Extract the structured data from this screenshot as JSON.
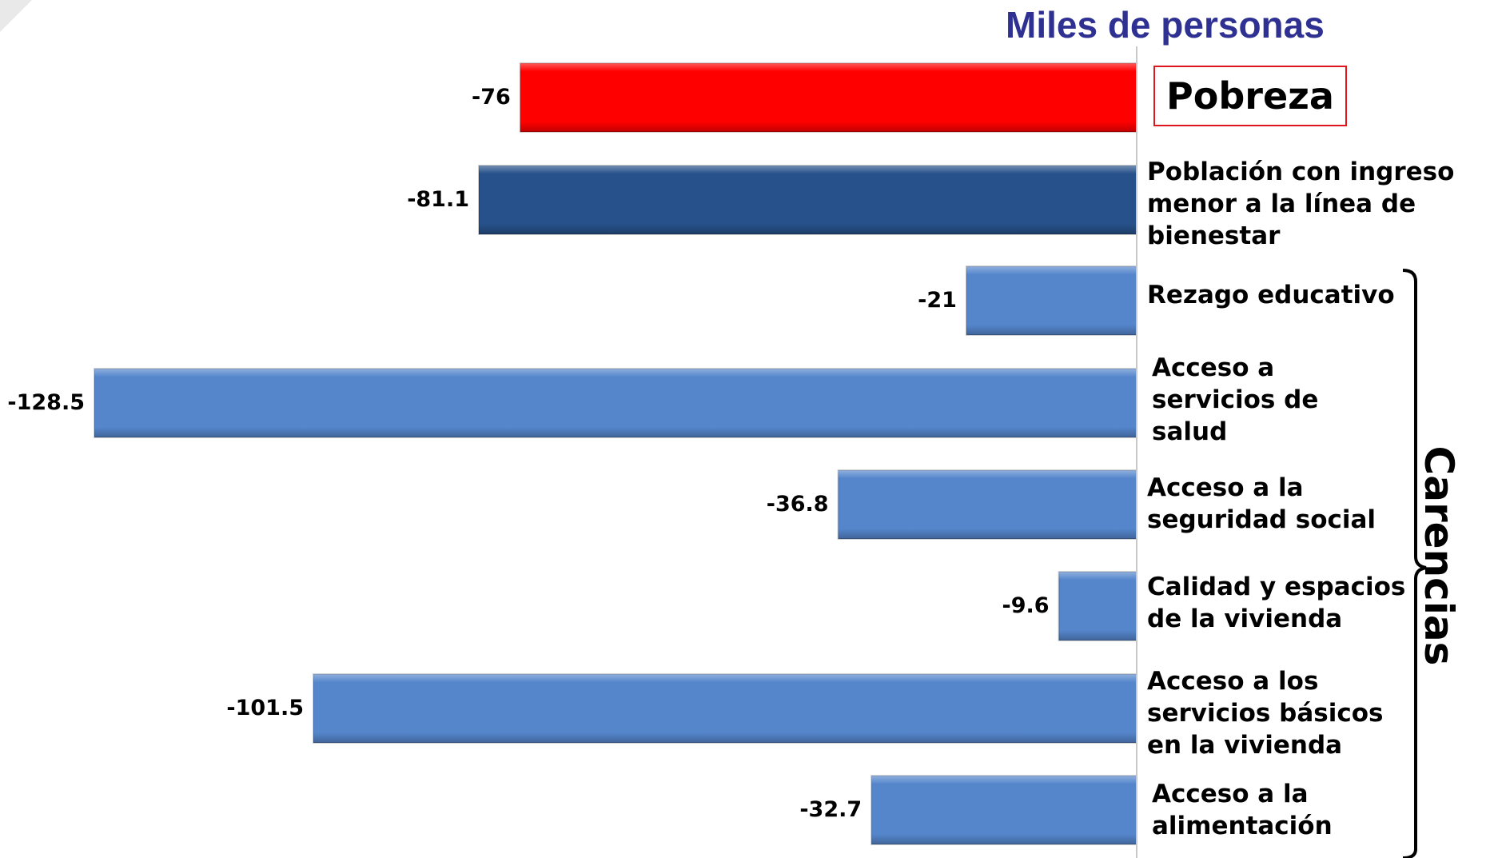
{
  "chart_data": {
    "type": "bar",
    "orientation": "horizontal",
    "title": "Miles de personas",
    "categories": [
      "Pobreza",
      "Población con ingreso\nmenor a la línea de\nbienestar",
      "Rezago educativo",
      "Acceso a\nservicios de\nsalud",
      "Acceso a  la\nseguridad social",
      "Calidad y espacios\nde la vivienda",
      "Acceso a los\nservicios básicos\nen la vivienda",
      "Acceso a la\nalimentación"
    ],
    "values": [
      -76,
      -81.1,
      -21,
      -128.5,
      -36.8,
      -9.6,
      -101.5,
      -32.7
    ],
    "value_labels": [
      "-76",
      "-81.1",
      "-21",
      "-128.5",
      "-36.8",
      "-9.6",
      "-101.5",
      "-32.7"
    ],
    "bar_colors": [
      "#ff0000",
      "#27518a",
      "#5586cc",
      "#5586cc",
      "#5586cc",
      "#5586cc",
      "#5586cc",
      "#5586cc"
    ],
    "group_label": "Carencias",
    "group_members": [
      2,
      3,
      4,
      5,
      6,
      7
    ],
    "xlim": [
      -128.5,
      0
    ],
    "grid": false,
    "legend": "none"
  },
  "colors": {
    "title": "#2e3192",
    "highlight_box": "#e0161e",
    "poverty_bar": "#ff0000",
    "income_bar": "#27518a",
    "deprivation_bar": "#5586cc"
  }
}
